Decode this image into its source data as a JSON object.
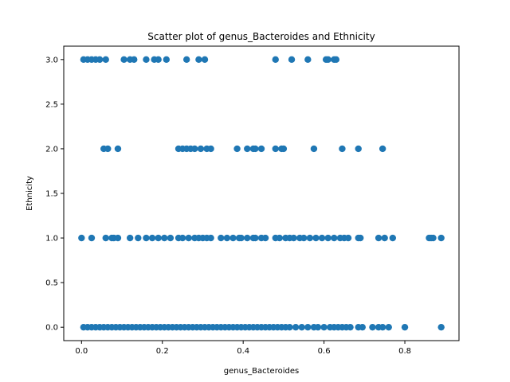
{
  "chart_data": {
    "type": "scatter",
    "title": "Scatter plot of genus_Bacteroides and Ethnicity",
    "xlabel": "genus_Bacteroides",
    "ylabel": "Ethnicity",
    "xlim": [
      -0.044,
      0.934
    ],
    "ylim": [
      -0.15,
      3.15
    ],
    "xticks": [
      0.0,
      0.2,
      0.4,
      0.6,
      0.8
    ],
    "xtick_labels": [
      "0.0",
      "0.2",
      "0.4",
      "0.6",
      "0.8"
    ],
    "yticks": [
      0.0,
      0.5,
      1.0,
      1.5,
      2.0,
      2.5,
      3.0
    ],
    "ytick_labels": [
      "0.0",
      "0.5",
      "1.0",
      "1.5",
      "2.0",
      "2.5",
      "3.0"
    ],
    "grid": false,
    "marker_color": "#1f77b4",
    "series": [
      {
        "x": [
          0.005,
          0.015,
          0.025,
          0.035,
          0.045,
          0.06,
          0.105,
          0.12,
          0.13,
          0.16,
          0.18,
          0.19,
          0.21,
          0.26,
          0.29,
          0.305,
          0.48,
          0.52,
          0.56,
          0.605,
          0.61,
          0.625,
          0.63,
          0.055,
          0.065,
          0.09,
          0.24,
          0.25,
          0.26,
          0.27,
          0.28,
          0.295,
          0.31,
          0.32,
          0.385,
          0.41,
          0.425,
          0.43,
          0.445,
          0.48,
          0.495,
          0.5,
          0.575,
          0.645,
          0.685,
          0.745,
          0.0,
          0.025,
          0.06,
          0.075,
          0.08,
          0.09,
          0.12,
          0.14,
          0.16,
          0.175,
          0.19,
          0.205,
          0.22,
          0.24,
          0.25,
          0.265,
          0.28,
          0.29,
          0.3,
          0.31,
          0.32,
          0.345,
          0.36,
          0.375,
          0.39,
          0.395,
          0.41,
          0.425,
          0.43,
          0.445,
          0.455,
          0.48,
          0.49,
          0.505,
          0.515,
          0.525,
          0.54,
          0.55,
          0.565,
          0.58,
          0.595,
          0.61,
          0.625,
          0.64,
          0.65,
          0.66,
          0.685,
          0.69,
          0.735,
          0.75,
          0.77,
          0.86,
          0.865,
          0.87,
          0.89,
          0.005,
          0.015,
          0.025,
          0.035,
          0.045,
          0.055,
          0.065,
          0.075,
          0.085,
          0.095,
          0.105,
          0.115,
          0.125,
          0.135,
          0.145,
          0.155,
          0.165,
          0.175,
          0.185,
          0.195,
          0.205,
          0.215,
          0.225,
          0.235,
          0.245,
          0.255,
          0.265,
          0.275,
          0.285,
          0.295,
          0.305,
          0.315,
          0.325,
          0.335,
          0.345,
          0.355,
          0.365,
          0.375,
          0.385,
          0.395,
          0.405,
          0.415,
          0.425,
          0.435,
          0.445,
          0.455,
          0.465,
          0.475,
          0.485,
          0.495,
          0.505,
          0.515,
          0.53,
          0.545,
          0.56,
          0.575,
          0.585,
          0.6,
          0.615,
          0.625,
          0.635,
          0.645,
          0.655,
          0.665,
          0.685,
          0.695,
          0.72,
          0.735,
          0.745,
          0.76,
          0.8,
          0.89
        ],
        "y": [
          3,
          3,
          3,
          3,
          3,
          3,
          3,
          3,
          3,
          3,
          3,
          3,
          3,
          3,
          3,
          3,
          3,
          3,
          3,
          3,
          3,
          3,
          3,
          2,
          2,
          2,
          2,
          2,
          2,
          2,
          2,
          2,
          2,
          2,
          2,
          2,
          2,
          2,
          2,
          2,
          2,
          2,
          2,
          2,
          2,
          2,
          1,
          1,
          1,
          1,
          1,
          1,
          1,
          1,
          1,
          1,
          1,
          1,
          1,
          1,
          1,
          1,
          1,
          1,
          1,
          1,
          1,
          1,
          1,
          1,
          1,
          1,
          1,
          1,
          1,
          1,
          1,
          1,
          1,
          1,
          1,
          1,
          1,
          1,
          1,
          1,
          1,
          1,
          1,
          1,
          1,
          1,
          1,
          1,
          1,
          1,
          1,
          1,
          1,
          1,
          1,
          0,
          0,
          0,
          0,
          0,
          0,
          0,
          0,
          0,
          0,
          0,
          0,
          0,
          0,
          0,
          0,
          0,
          0,
          0,
          0,
          0,
          0,
          0,
          0,
          0,
          0,
          0,
          0,
          0,
          0,
          0,
          0,
          0,
          0,
          0,
          0,
          0,
          0,
          0,
          0,
          0,
          0,
          0,
          0,
          0,
          0,
          0,
          0,
          0,
          0,
          0,
          0,
          0,
          0,
          0,
          0,
          0,
          0,
          0,
          0,
          0,
          0,
          0,
          0,
          0,
          0,
          0,
          0,
          0,
          0,
          0,
          0
        ]
      }
    ]
  }
}
